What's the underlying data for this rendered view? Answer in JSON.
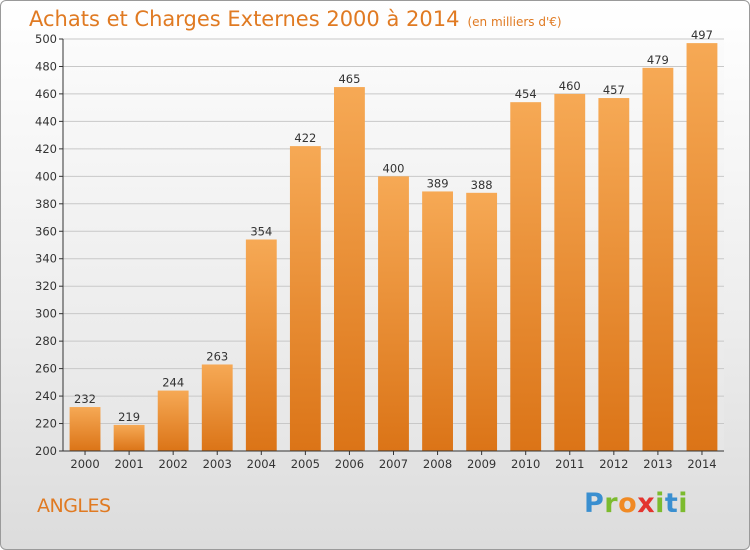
{
  "title": "Achats et Charges Externes 2000 à 2014",
  "unit": "(en milliers d'€)",
  "commune": "ANGLES",
  "logo": {
    "text": "Proxiti",
    "letters": [
      "P",
      "r",
      "o",
      "x",
      "i",
      "t",
      "i"
    ],
    "colors": [
      "#3a8fd0",
      "#7cbb2e",
      "#f08a24",
      "#e3342f",
      "#7cbb2e",
      "#3a8fd0",
      "#7cbb2e"
    ]
  },
  "colors": {
    "bar_light": "#f6a955",
    "bar_dark": "#db7417",
    "accent": "#e07a22"
  },
  "chart_data": {
    "type": "bar",
    "title": "Achats et Charges Externes 2000 à 2014",
    "subtitle": "(en milliers d'€)",
    "categories": [
      "2000",
      "2001",
      "2002",
      "2003",
      "2004",
      "2005",
      "2006",
      "2007",
      "2008",
      "2009",
      "2010",
      "2011",
      "2012",
      "2013",
      "2014"
    ],
    "values": [
      232,
      219,
      244,
      263,
      354,
      422,
      465,
      400,
      389,
      388,
      454,
      460,
      457,
      479,
      497
    ],
    "ylim": [
      200,
      500
    ],
    "yticks": [
      200,
      220,
      240,
      260,
      280,
      300,
      320,
      340,
      360,
      380,
      400,
      420,
      440,
      460,
      480,
      500
    ],
    "grid": true,
    "data_labels": true
  }
}
